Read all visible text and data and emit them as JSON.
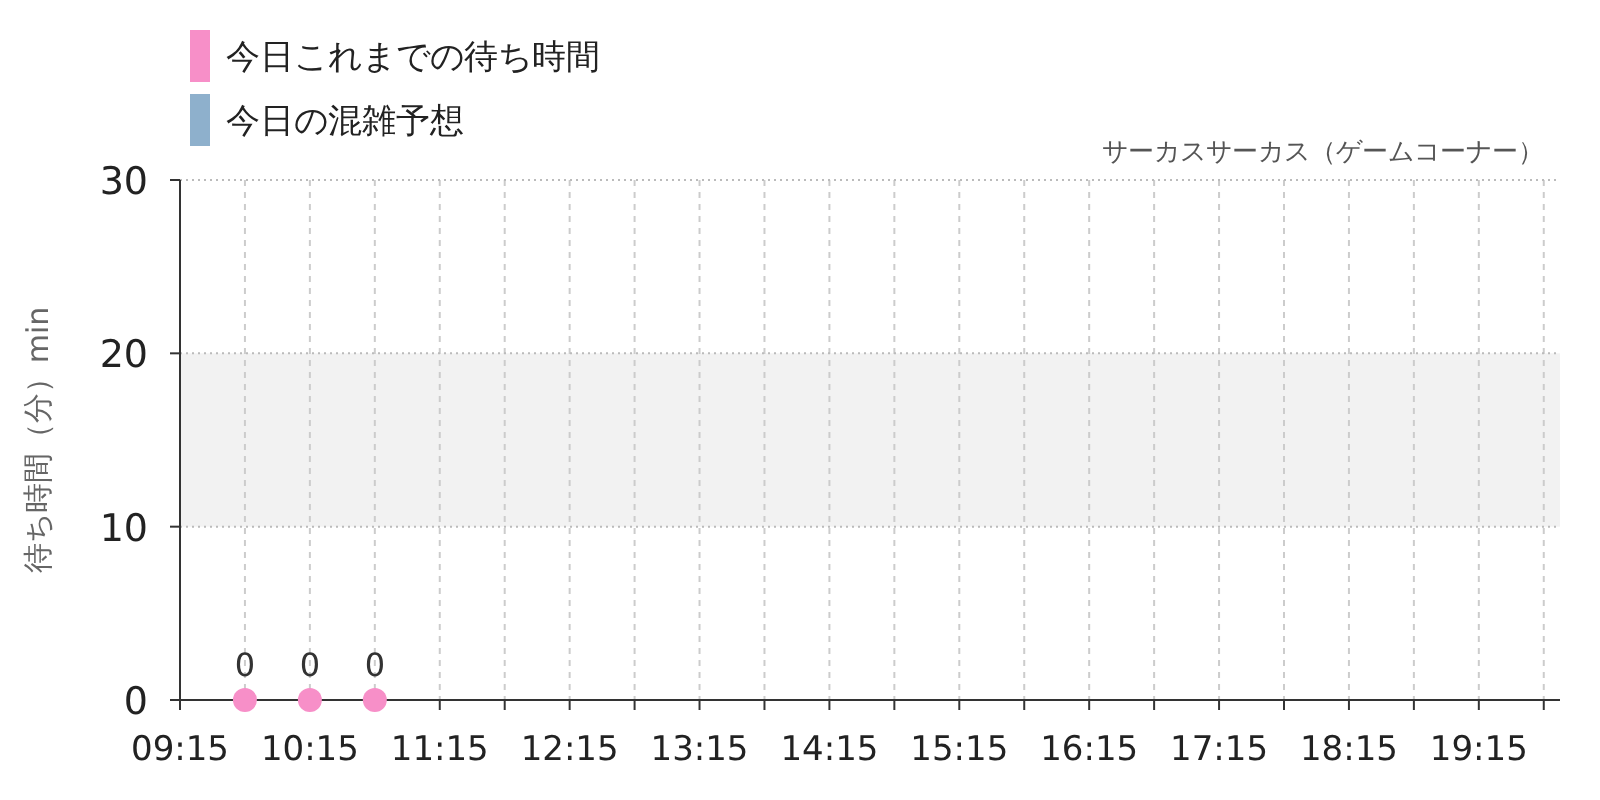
{
  "chart_data": {
    "type": "scatter",
    "title": "サーカスサーカス（ゲームコーナー）",
    "ylabel": "待ち時間（分）min",
    "x": [
      9.75,
      10.25,
      10.75
    ],
    "series": [
      {
        "name": "今日これまでの待ち時間",
        "color": "#f78fc8",
        "values": [
          0,
          0,
          0
        ]
      },
      {
        "name": "今日の混雑予想",
        "color": "#8eb0cc",
        "values": [
          null,
          null,
          null
        ]
      }
    ],
    "xlim": [
      9.25,
      19.875
    ],
    "xticks": [
      {
        "value": 9.25,
        "label": "09:15"
      },
      {
        "value": 9.75,
        "label": null
      },
      {
        "value": 10.25,
        "label": "10:15"
      },
      {
        "value": 10.75,
        "label": null
      },
      {
        "value": 11.25,
        "label": "11:15"
      },
      {
        "value": 11.75,
        "label": null
      },
      {
        "value": 12.25,
        "label": "12:15"
      },
      {
        "value": 12.75,
        "label": null
      },
      {
        "value": 13.25,
        "label": "13:15"
      },
      {
        "value": 13.75,
        "label": null
      },
      {
        "value": 14.25,
        "label": "14:15"
      },
      {
        "value": 14.75,
        "label": null
      },
      {
        "value": 15.25,
        "label": "15:15"
      },
      {
        "value": 15.75,
        "label": null
      },
      {
        "value": 16.25,
        "label": "16:15"
      },
      {
        "value": 16.75,
        "label": null
      },
      {
        "value": 17.25,
        "label": "17:15"
      },
      {
        "value": 17.75,
        "label": null
      },
      {
        "value": 18.25,
        "label": "18:15"
      },
      {
        "value": 18.75,
        "label": null
      },
      {
        "value": 19.25,
        "label": "19:15"
      },
      {
        "value": 19.75,
        "label": null
      }
    ],
    "ylim": [
      0,
      30
    ],
    "yticks": [
      0,
      10,
      20,
      30
    ],
    "bands": [
      {
        "axis": "y",
        "from": 10,
        "to": 20,
        "color": "#f2f2f2"
      }
    ],
    "grid": true,
    "marker": "circle",
    "data_labels": true,
    "legend": "top left"
  }
}
